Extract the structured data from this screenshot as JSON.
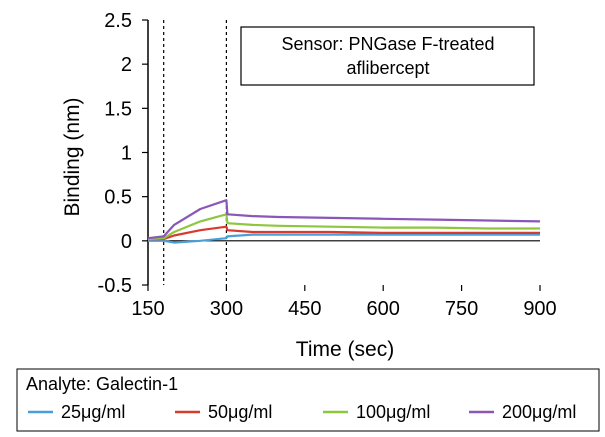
{
  "chart_data": {
    "type": "line",
    "xlabel": "Time (sec)",
    "ylabel": "Binding (nm)",
    "xlim": [
      150,
      900
    ],
    "ylim": [
      -0.5,
      2.5
    ],
    "x_ticks": [
      150,
      300,
      450,
      600,
      750,
      900
    ],
    "y_ticks": [
      -0.5,
      0,
      0.5,
      1,
      1.5,
      2,
      2.5
    ],
    "x_tick_labels": [
      "150",
      "300",
      "450",
      "600",
      "750",
      "900"
    ],
    "y_tick_labels": [
      "-0.5",
      "0",
      "0.5",
      "1",
      "1.5",
      "2",
      "2.5"
    ],
    "grid": false,
    "vertical_markers": [
      180,
      300
    ],
    "annotation": {
      "line1": "Sensor: PNGase F-treated",
      "line2": "aflibercept"
    },
    "legend": {
      "title": "Analyte: Galectin-1",
      "placement": "bottom"
    },
    "series": [
      {
        "name": "25μg/ml",
        "color": "#4a9fd8",
        "x": [
          150,
          180,
          200,
          250,
          300,
          302,
          350,
          400,
          500,
          600,
          700,
          800,
          900
        ],
        "y": [
          0.0,
          0.0,
          -0.02,
          0.0,
          0.03,
          0.05,
          0.07,
          0.07,
          0.07,
          0.07,
          0.07,
          0.07,
          0.07
        ]
      },
      {
        "name": "50μg/ml",
        "color": "#d63c2e",
        "x": [
          150,
          180,
          200,
          250,
          300,
          302,
          350,
          400,
          500,
          600,
          700,
          800,
          900
        ],
        "y": [
          0.02,
          0.02,
          0.06,
          0.12,
          0.16,
          0.12,
          0.1,
          0.1,
          0.1,
          0.09,
          0.09,
          0.09,
          0.09
        ]
      },
      {
        "name": "100μg/ml",
        "color": "#8dc63f",
        "x": [
          150,
          180,
          200,
          250,
          300,
          302,
          350,
          400,
          500,
          600,
          700,
          800,
          900
        ],
        "y": [
          0.02,
          0.03,
          0.1,
          0.22,
          0.3,
          0.2,
          0.18,
          0.17,
          0.16,
          0.15,
          0.15,
          0.14,
          0.14
        ]
      },
      {
        "name": "200μg/ml",
        "color": "#8a56b8",
        "x": [
          150,
          180,
          200,
          250,
          300,
          302,
          350,
          400,
          500,
          600,
          700,
          800,
          900
        ],
        "y": [
          0.03,
          0.05,
          0.18,
          0.36,
          0.46,
          0.3,
          0.28,
          0.27,
          0.26,
          0.25,
          0.24,
          0.23,
          0.22
        ]
      }
    ]
  }
}
